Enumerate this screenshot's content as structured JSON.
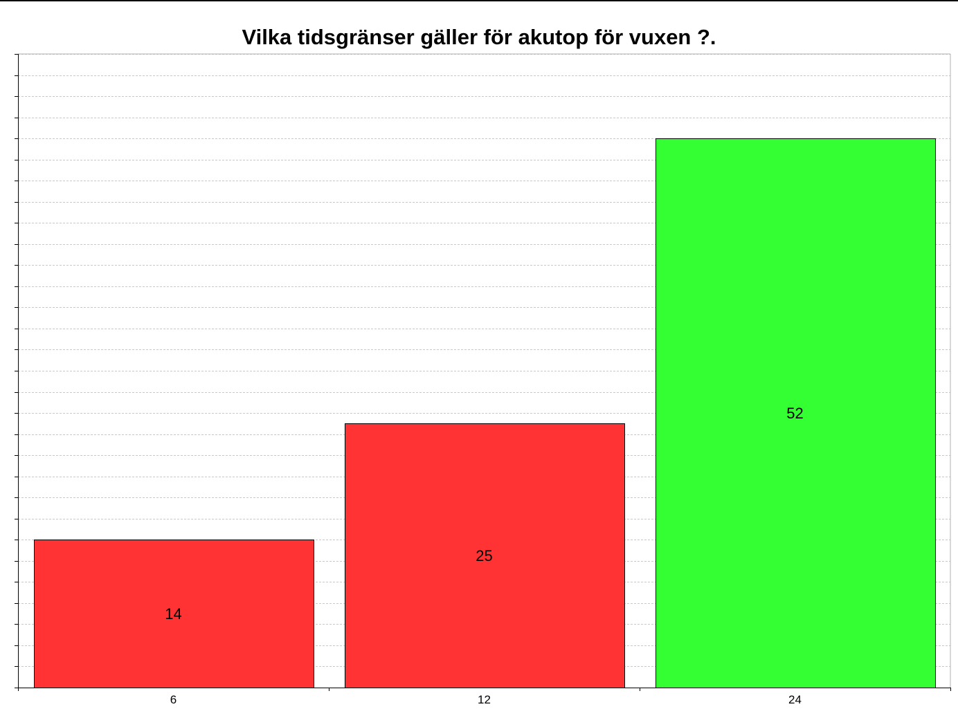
{
  "chart_data": {
    "type": "bar",
    "title": "Vilka tidsgränser gäller för akutop för vuxen ?.",
    "xlabel": "",
    "ylabel": "",
    "categories": [
      "6",
      "12",
      "24"
    ],
    "values": [
      14,
      25,
      52
    ],
    "bar_colors": [
      "#ff3333",
      "#ff3333",
      "#33ff33"
    ],
    "ylim": [
      0,
      60
    ],
    "ytick_step": 2,
    "ytick_labels_shown": false,
    "grid": true,
    "legend": "none"
  }
}
